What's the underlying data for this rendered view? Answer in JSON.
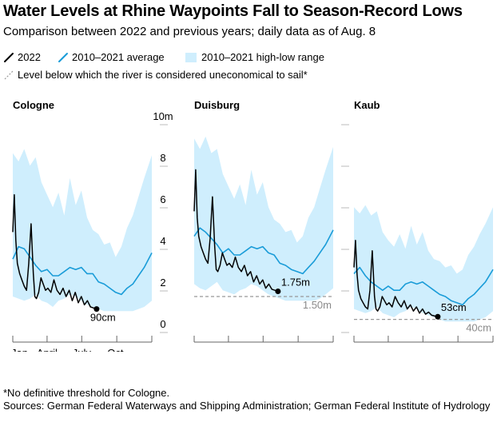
{
  "title": "Water Levels at Rhine Waypoints Fall to Season-Record Lows",
  "subtitle": "Comparison between 2022 and previous years; daily data as of Aug. 8",
  "legend": {
    "current": "2022",
    "average": "2010–2021 average",
    "range": "2010–2021 high-low range",
    "threshold": "Level below which the river is considered uneconomical to sail*"
  },
  "footnote": "*No definitive threshold for Cologne.",
  "sources": "Sources: German Federal Waterways and Shipping Administration; German Federal Institute of Hydrology",
  "colors": {
    "current": "#000000",
    "average": "#1a9cd8",
    "range": "#cfeefd",
    "threshold": "#999999",
    "axis": "#666666"
  },
  "chart_data": [
    {
      "type": "line",
      "title": "Cologne",
      "unit": "m",
      "ylim": [
        0,
        10
      ],
      "yticks": [
        0,
        2,
        4,
        6,
        8,
        10
      ],
      "ytick_labels": [
        "0",
        "2",
        "4",
        "6",
        "8",
        "10m"
      ],
      "xticks": [
        0,
        90,
        181,
        273
      ],
      "xtick_labels": [
        "Jan.",
        "April",
        "July",
        "Oct."
      ],
      "x_domain": [
        0,
        365
      ],
      "threshold": null,
      "threshold_label": null,
      "end_label": "90cm",
      "series": [
        {
          "name": "2010–2021 high-low range",
          "x": [
            0,
            15,
            30,
            45,
            60,
            75,
            90,
            105,
            120,
            135,
            150,
            165,
            180,
            195,
            210,
            225,
            240,
            255,
            270,
            285,
            300,
            315,
            330,
            345,
            365
          ],
          "high": [
            8.4,
            8.0,
            8.6,
            7.8,
            8.2,
            7.0,
            6.4,
            5.8,
            6.5,
            5.4,
            7.2,
            5.9,
            6.6,
            5.3,
            4.7,
            4.5,
            4.0,
            4.1,
            3.4,
            3.9,
            4.8,
            5.4,
            6.3,
            7.2,
            8.3
          ],
          "low": [
            1.5,
            1.4,
            1.3,
            1.4,
            1.6,
            1.3,
            1.2,
            1.0,
            1.3,
            1.4,
            1.6,
            1.5,
            1.3,
            1.1,
            1.0,
            0.9,
            0.8,
            0.8,
            0.8,
            0.8,
            0.8,
            0.8,
            0.9,
            1.0,
            1.3
          ]
        },
        {
          "name": "2010–2021 average",
          "x": [
            0,
            15,
            30,
            45,
            60,
            75,
            90,
            105,
            120,
            135,
            150,
            165,
            180,
            195,
            210,
            225,
            240,
            255,
            270,
            285,
            300,
            315,
            330,
            345,
            365
          ],
          "values": [
            3.3,
            3.9,
            3.8,
            3.4,
            3.0,
            2.7,
            2.8,
            2.5,
            2.5,
            2.7,
            2.9,
            2.8,
            2.9,
            2.6,
            2.6,
            2.2,
            2.1,
            1.9,
            1.7,
            1.6,
            1.9,
            2.1,
            2.5,
            2.9,
            3.6
          ]
        },
        {
          "name": "2022",
          "x": [
            0,
            4,
            8,
            12,
            18,
            24,
            30,
            36,
            42,
            48,
            54,
            58,
            62,
            68,
            74,
            80,
            86,
            92,
            100,
            108,
            116,
            124,
            132,
            140,
            148,
            156,
            164,
            172,
            180,
            188,
            196,
            204,
            212,
            220
          ],
          "values": [
            4.6,
            6.4,
            4.2,
            3.1,
            2.6,
            2.3,
            2.0,
            1.8,
            3.1,
            5.0,
            2.6,
            1.5,
            1.4,
            1.7,
            2.4,
            2.1,
            1.8,
            1.9,
            1.7,
            2.3,
            1.8,
            1.6,
            1.9,
            1.5,
            1.8,
            1.3,
            1.7,
            1.2,
            1.5,
            1.1,
            1.3,
            1.0,
            0.95,
            0.9
          ]
        }
      ]
    },
    {
      "type": "line",
      "title": "Duisburg",
      "unit": "m",
      "ylim": [
        0,
        10
      ],
      "yticks": [
        0,
        2,
        4,
        6,
        8,
        10
      ],
      "xticks": [
        0,
        90,
        181,
        273
      ],
      "x_domain": [
        0,
        365
      ],
      "threshold": 1.5,
      "threshold_label": "1.50m",
      "end_label": "1.75m",
      "series": [
        {
          "name": "2010–2021 high-low range",
          "x": [
            0,
            15,
            30,
            45,
            60,
            75,
            90,
            105,
            120,
            135,
            150,
            165,
            180,
            195,
            210,
            225,
            240,
            255,
            270,
            285,
            300,
            315,
            330,
            345,
            365
          ],
          "high": [
            9.1,
            8.6,
            9.2,
            8.4,
            8.6,
            7.4,
            6.8,
            6.2,
            6.9,
            5.9,
            7.6,
            6.4,
            7.0,
            5.8,
            5.2,
            5.0,
            4.6,
            4.7,
            4.1,
            4.4,
            5.3,
            5.8,
            6.7,
            7.6,
            8.7
          ],
          "low": [
            2.1,
            1.9,
            1.8,
            2.0,
            2.2,
            1.8,
            1.7,
            1.6,
            1.8,
            1.9,
            2.1,
            2.0,
            1.8,
            1.6,
            1.5,
            1.4,
            1.3,
            1.3,
            1.3,
            1.3,
            1.3,
            1.3,
            1.4,
            1.6,
            1.9
          ]
        },
        {
          "name": "2010–2021 average",
          "x": [
            0,
            15,
            30,
            45,
            60,
            75,
            90,
            105,
            120,
            135,
            150,
            165,
            180,
            195,
            210,
            225,
            240,
            255,
            270,
            285,
            300,
            315,
            330,
            345,
            365
          ],
          "values": [
            4.4,
            4.8,
            4.6,
            4.3,
            4.0,
            3.6,
            3.8,
            3.5,
            3.5,
            3.7,
            3.9,
            3.8,
            3.9,
            3.6,
            3.5,
            3.1,
            3.0,
            2.8,
            2.7,
            2.6,
            2.9,
            3.2,
            3.6,
            4.0,
            4.7
          ]
        },
        {
          "name": "2022",
          "x": [
            0,
            4,
            8,
            12,
            18,
            24,
            30,
            36,
            42,
            48,
            54,
            58,
            62,
            68,
            74,
            80,
            86,
            92,
            100,
            108,
            116,
            124,
            132,
            140,
            148,
            156,
            164,
            172,
            180,
            188,
            196,
            204,
            212,
            220
          ],
          "values": [
            5.6,
            7.6,
            5.3,
            4.4,
            3.9,
            3.6,
            3.3,
            3.1,
            4.3,
            6.3,
            3.9,
            2.8,
            2.7,
            3.0,
            3.6,
            3.3,
            3.0,
            3.1,
            2.9,
            3.4,
            2.9,
            2.7,
            3.0,
            2.5,
            2.7,
            2.2,
            2.5,
            2.1,
            2.3,
            1.9,
            2.1,
            1.85,
            1.8,
            1.75
          ]
        }
      ]
    },
    {
      "type": "line",
      "title": "Kaub",
      "unit": "m",
      "ylim": [
        0,
        10
      ],
      "yticks": [
        0,
        2,
        4,
        6,
        8,
        10
      ],
      "xticks": [
        0,
        90,
        181,
        273
      ],
      "x_domain": [
        0,
        365
      ],
      "threshold": 0.4,
      "threshold_label": "40cm",
      "end_label": "53cm",
      "series": [
        {
          "name": "2010–2021 high-low range",
          "x": [
            0,
            15,
            30,
            45,
            60,
            75,
            90,
            105,
            120,
            135,
            150,
            165,
            180,
            195,
            210,
            225,
            240,
            255,
            270,
            285,
            300,
            315,
            330,
            345,
            365
          ],
          "high": [
            5.8,
            5.5,
            5.9,
            5.4,
            5.6,
            4.6,
            4.2,
            3.9,
            4.5,
            3.8,
            4.9,
            4.0,
            4.6,
            3.7,
            3.3,
            3.2,
            2.9,
            3.0,
            2.6,
            2.8,
            3.5,
            3.9,
            4.5,
            5.0,
            5.8
          ],
          "low": [
            0.9,
            0.8,
            0.7,
            0.8,
            1.0,
            0.7,
            0.6,
            0.5,
            0.7,
            0.8,
            1.0,
            0.9,
            0.7,
            0.6,
            0.5,
            0.4,
            0.3,
            0.3,
            0.3,
            0.3,
            0.3,
            0.3,
            0.4,
            0.5,
            0.8
          ]
        },
        {
          "name": "2010–2021 average",
          "x": [
            0,
            15,
            30,
            45,
            60,
            75,
            90,
            105,
            120,
            135,
            150,
            165,
            180,
            195,
            210,
            225,
            240,
            255,
            270,
            285,
            300,
            315,
            330,
            345,
            365
          ],
          "values": [
            2.6,
            2.9,
            2.5,
            2.2,
            2.0,
            1.8,
            2.0,
            1.8,
            1.8,
            2.1,
            2.2,
            2.1,
            2.2,
            2.0,
            1.8,
            1.6,
            1.5,
            1.3,
            1.2,
            1.1,
            1.4,
            1.6,
            1.9,
            2.2,
            2.8
          ]
        },
        {
          "name": "2022",
          "x": [
            0,
            4,
            8,
            12,
            18,
            24,
            30,
            36,
            42,
            48,
            54,
            58,
            62,
            68,
            74,
            80,
            86,
            92,
            100,
            108,
            116,
            124,
            132,
            140,
            148,
            156,
            164,
            172,
            180,
            188,
            196,
            204,
            212,
            220
          ],
          "values": [
            2.9,
            4.2,
            2.6,
            1.8,
            1.4,
            1.2,
            1.0,
            0.9,
            1.8,
            3.7,
            1.5,
            0.9,
            0.8,
            1.0,
            1.5,
            1.3,
            1.1,
            1.2,
            1.0,
            1.5,
            1.2,
            1.0,
            1.3,
            0.9,
            1.1,
            0.8,
            1.0,
            0.7,
            0.9,
            0.65,
            0.75,
            0.6,
            0.56,
            0.53
          ]
        }
      ]
    }
  ]
}
